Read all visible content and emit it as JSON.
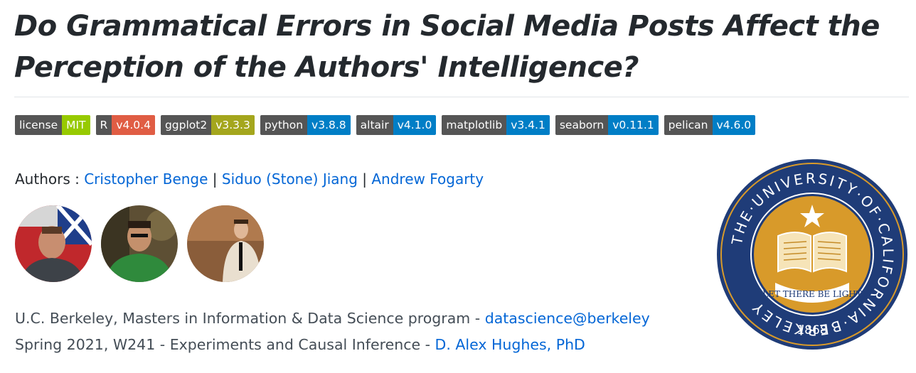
{
  "title": "Do Grammatical Errors in Social Media Posts Affect the Perception of the Authors' Intelligence?",
  "badges": [
    {
      "label": "license",
      "value": "MIT",
      "color": "#97ca00"
    },
    {
      "label": "R",
      "value": "v4.0.4",
      "color": "#e05d44"
    },
    {
      "label": "ggplot2",
      "value": "v3.3.3",
      "color": "#a4a61d"
    },
    {
      "label": "python",
      "value": "v3.8.8",
      "color": "#007ec6"
    },
    {
      "label": "altair",
      "value": "v4.1.0",
      "color": "#007ec6"
    },
    {
      "label": "matplotlib",
      "value": "v3.4.1",
      "color": "#007ec6"
    },
    {
      "label": "seaborn",
      "value": "v0.11.1",
      "color": "#007ec6"
    },
    {
      "label": "pelican",
      "value": "v4.6.0",
      "color": "#007ec6"
    }
  ],
  "authors": {
    "label": "Authors :",
    "names": [
      "Cristopher Benge",
      "Siduo (Stone) Jiang",
      "Andrew Fogarty"
    ],
    "separator": "|"
  },
  "info": {
    "line1_text": "U.C. Berkeley, Masters in Information & Data Science program - ",
    "line1_link": "datascience@berkeley",
    "line2_text": "Spring 2021, W241 - Experiments and Causal Inference - ",
    "line2_link": "D. Alex Hughes, PhD"
  },
  "seal": {
    "ring_text": "THE·UNIVERSITY·OF·CALIFORNIA·BERKELEY",
    "motto": "LET THERE BE LIGHT",
    "year": "1868",
    "ring_color": "#1f3c78",
    "gold_color": "#d89a2a"
  }
}
